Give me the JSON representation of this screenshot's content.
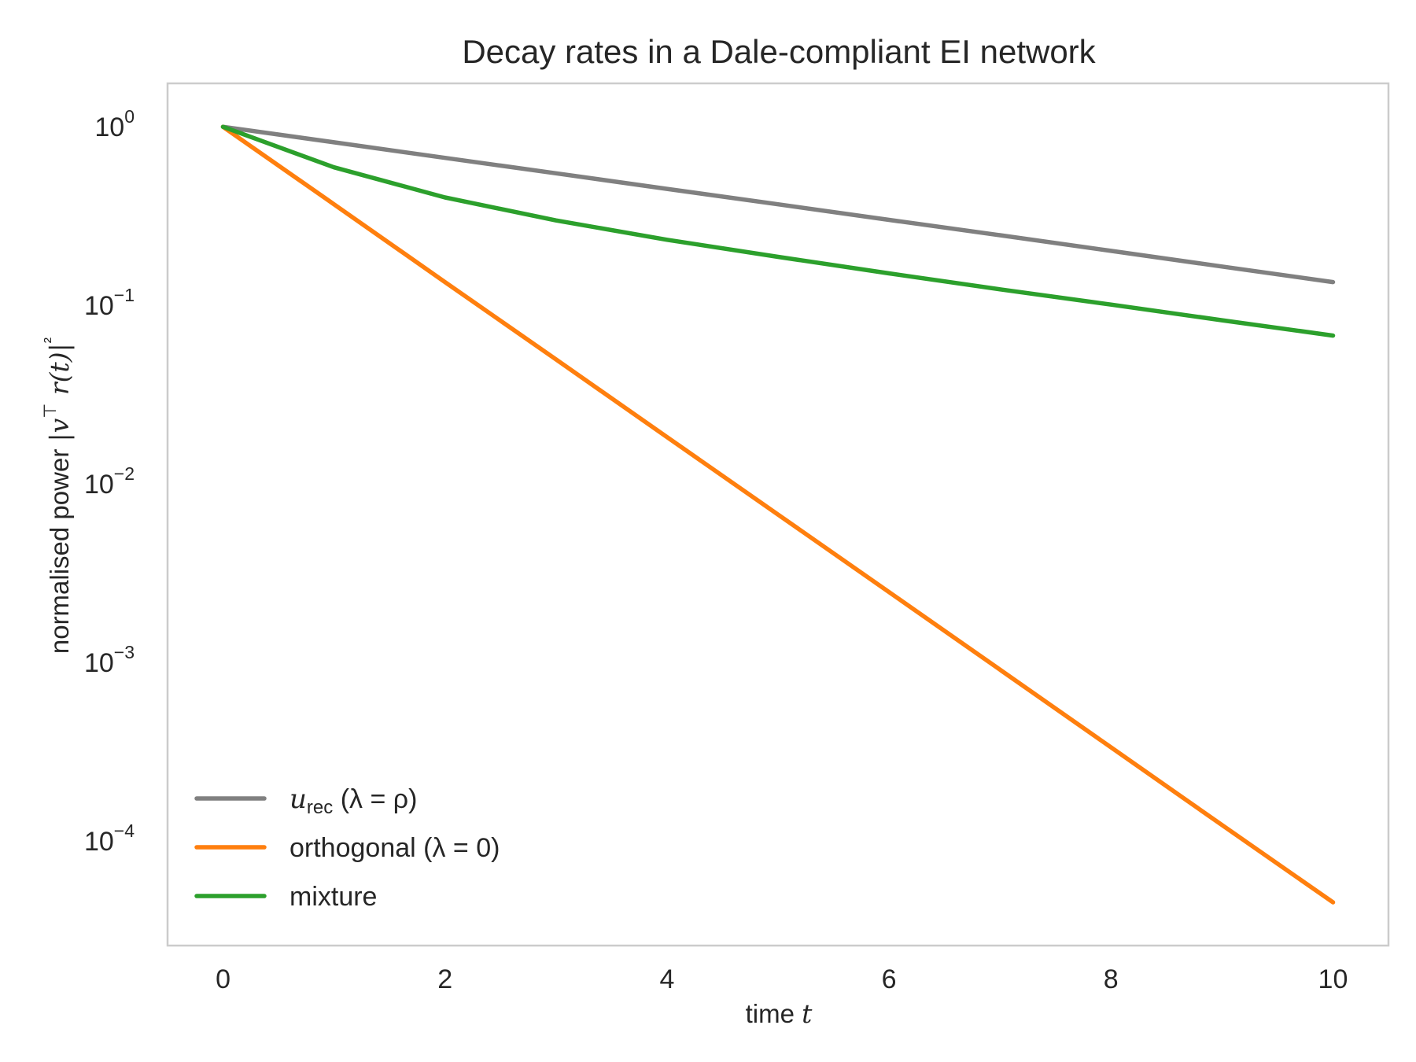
{
  "chart_data": {
    "type": "line",
    "title": "Decay rates in a Dale-compliant EI network",
    "xlabel": "time  t",
    "ylabel": "normalised power  |v⊤ r(t)|²",
    "xlim": [
      -0.5,
      10.5
    ],
    "ylim": [
      2.6e-05,
      1.75
    ],
    "yscale": "log",
    "grid": false,
    "legend_position": "lower-left",
    "x_ticks": [
      0,
      2,
      4,
      6,
      8,
      10
    ],
    "y_ticks": [
      {
        "value": 1,
        "base": "10",
        "exp": "0"
      },
      {
        "value": 0.1,
        "base": "10",
        "exp": "−1"
      },
      {
        "value": 0.01,
        "base": "10",
        "exp": "−2"
      },
      {
        "value": 0.001,
        "base": "10",
        "exp": "−3"
      },
      {
        "value": 0.0001,
        "base": "10",
        "exp": "−4"
      }
    ],
    "x": [
      0,
      1,
      2,
      3,
      4,
      5,
      6,
      7,
      8,
      9,
      10
    ],
    "series": [
      {
        "name": "u_rec (λ = ρ)",
        "legend": {
          "sym": "u",
          "subscript": "rec",
          "rest": " (λ = ρ)"
        },
        "color": "#808080",
        "values": [
          1.0,
          0.819,
          0.67,
          0.549,
          0.449,
          0.368,
          0.301,
          0.247,
          0.202,
          0.165,
          0.135
        ]
      },
      {
        "name": "orthogonal (λ = 0)",
        "legend": {
          "sym": "",
          "subscript": "",
          "rest": "orthogonal (λ = 0)"
        },
        "color": "#ff7f0e",
        "values": [
          1.0,
          0.368,
          0.135,
          0.0498,
          0.0183,
          0.00674,
          0.00248,
          0.000912,
          0.000335,
          0.000123,
          4.54e-05
        ]
      },
      {
        "name": "mixture",
        "legend": {
          "sym": "",
          "subscript": "",
          "rest": "mixture"
        },
        "color": "#2ca02c",
        "values": [
          1.0,
          0.593,
          0.402,
          0.299,
          0.233,
          0.187,
          0.151,
          0.123,
          0.101,
          0.0825,
          0.0677
        ]
      }
    ]
  }
}
